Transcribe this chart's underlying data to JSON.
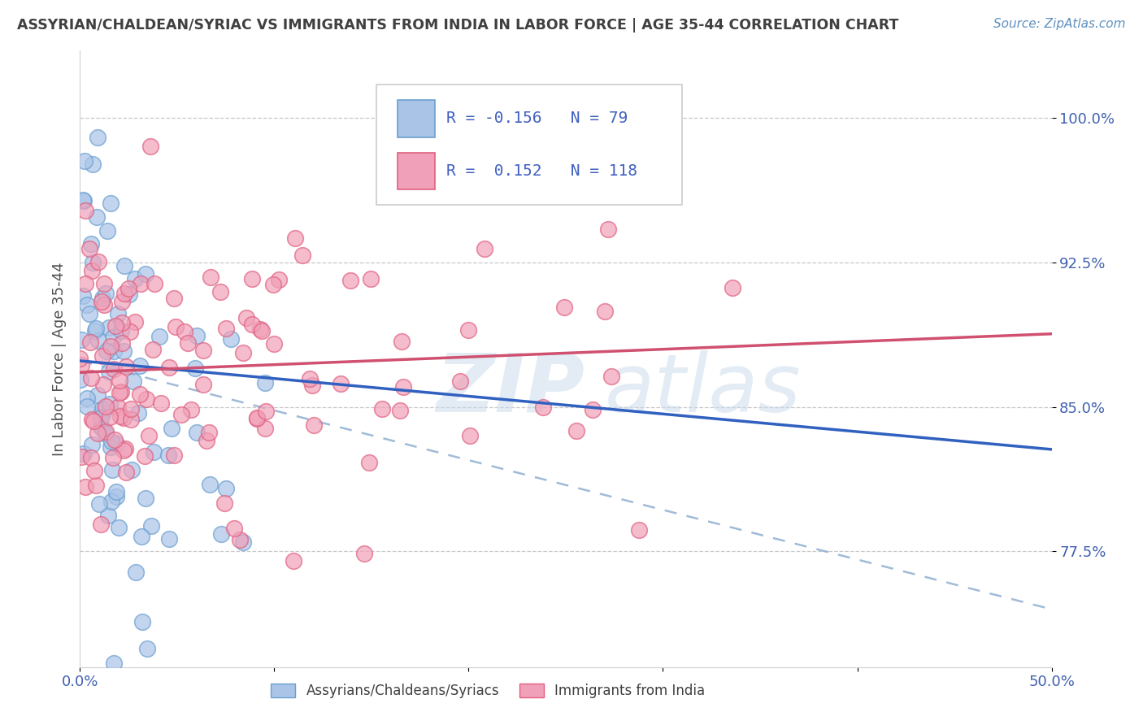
{
  "title": "ASSYRIAN/CHALDEAN/SYRIAC VS IMMIGRANTS FROM INDIA IN LABOR FORCE | AGE 35-44 CORRELATION CHART",
  "source_text": "Source: ZipAtlas.com",
  "ylabel": "In Labor Force | Age 35-44",
  "xlim": [
    0.0,
    0.5
  ],
  "ylim": [
    0.715,
    1.035
  ],
  "yticks": [
    0.775,
    0.85,
    0.925,
    1.0
  ],
  "yticklabels": [
    "77.5%",
    "85.0%",
    "92.5%",
    "100.0%"
  ],
  "xtick_positions": [
    0.0,
    0.1,
    0.2,
    0.3,
    0.4,
    0.5
  ],
  "xticklabels": [
    "0.0%",
    "",
    "",
    "",
    "",
    "50.0%"
  ],
  "legend_labels": [
    "Assyrians/Chaldeans/Syriacs",
    "Immigrants from India"
  ],
  "blue_color": "#aac4e8",
  "pink_color": "#f0a0b8",
  "blue_edge": "#6a9fd0",
  "pink_edge": "#e06080",
  "blue_line_color": "#3060c0",
  "pink_line_color": "#d05070",
  "dashed_line_color": "#90afd0",
  "R_blue": -0.156,
  "N_blue": 79,
  "R_pink": 0.152,
  "N_pink": 118,
  "bg_color": "#ffffff",
  "grid_color": "#c8c8c8",
  "title_color": "#404040",
  "axis_label_color": "#505050",
  "tick_color": "#4060b0",
  "legend_R_color": "#4060c0",
  "legend_text_color": "#404040",
  "blue_line_x": [
    0.0,
    0.5
  ],
  "blue_line_y": [
    0.874,
    0.828
  ],
  "pink_line_x": [
    0.0,
    0.5
  ],
  "pink_line_y": [
    0.868,
    0.888
  ],
  "dash_line_x": [
    0.0,
    0.5
  ],
  "dash_line_y": [
    0.874,
    0.745
  ],
  "watermark_text": "ZIPatlas",
  "watermark_color": "#c8daea",
  "watermark_alpha": 0.5
}
